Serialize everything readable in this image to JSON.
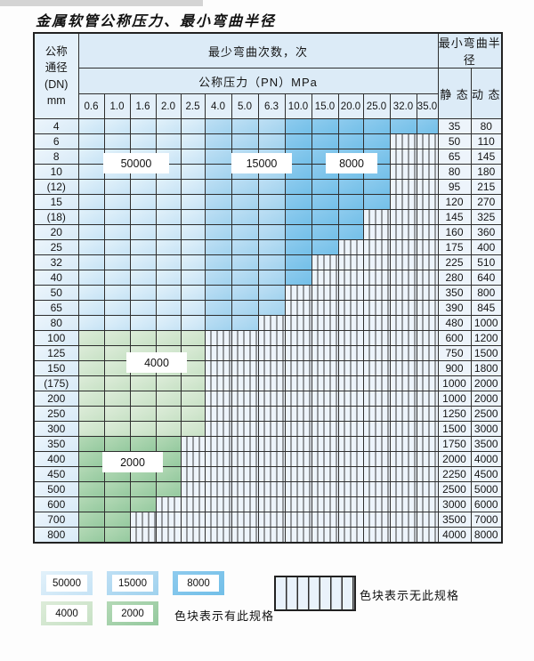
{
  "title": "金属软管公称压力、最小弯曲半径",
  "header": {
    "dn_lines": [
      "公称",
      "通径",
      "(DN)",
      "mm"
    ],
    "bend_times_label": "最少弯曲次数，次",
    "pressure_label": "公称压力（PN）MPa",
    "min_radius_label": "最小弯曲半径",
    "static_label": "静 态",
    "dynamic_label": "动 态",
    "pressure_columns": [
      "0.6",
      "1.0",
      "1.6",
      "2.0",
      "2.5",
      "4.0",
      "5.0",
      "6.3",
      "10.0",
      "15.0",
      "20.0",
      "25.0",
      "32.0",
      "35.0"
    ]
  },
  "colors": {
    "cycles_50000": "#d3e9f7",
    "cycles_15000": "#a5d4ef",
    "cycles_8000": "#7cc4ea",
    "cycles_4000": "#d2e7d0",
    "cycles_2000": "#9ecfa6",
    "no_spec_bg": "#edf4fb",
    "grid_line": "#2e2e2e"
  },
  "rows": [
    {
      "dn": "4",
      "static": "35",
      "dynamic": "80",
      "last": 13,
      "scheme": "blue"
    },
    {
      "dn": "6",
      "static": "50",
      "dynamic": "110",
      "last": 11,
      "scheme": "blue"
    },
    {
      "dn": "8",
      "static": "65",
      "dynamic": "145",
      "last": 11,
      "scheme": "blue"
    },
    {
      "dn": "10",
      "static": "80",
      "dynamic": "180",
      "last": 11,
      "scheme": "blue"
    },
    {
      "dn": "(12)",
      "static": "95",
      "dynamic": "215",
      "last": 11,
      "scheme": "blue"
    },
    {
      "dn": "15",
      "static": "120",
      "dynamic": "270",
      "last": 11,
      "scheme": "blue"
    },
    {
      "dn": "(18)",
      "static": "145",
      "dynamic": "325",
      "last": 10,
      "scheme": "blue"
    },
    {
      "dn": "20",
      "static": "160",
      "dynamic": "360",
      "last": 10,
      "scheme": "blue"
    },
    {
      "dn": "25",
      "static": "175",
      "dynamic": "400",
      "last": 9,
      "scheme": "blue"
    },
    {
      "dn": "32",
      "static": "225",
      "dynamic": "510",
      "last": 8,
      "scheme": "blue"
    },
    {
      "dn": "40",
      "static": "280",
      "dynamic": "640",
      "last": 8,
      "scheme": "blue"
    },
    {
      "dn": "50",
      "static": "350",
      "dynamic": "800",
      "last": 7,
      "scheme": "blue"
    },
    {
      "dn": "65",
      "static": "390",
      "dynamic": "845",
      "last": 7,
      "scheme": "blue"
    },
    {
      "dn": "80",
      "static": "480",
      "dynamic": "1000",
      "last": 6,
      "scheme": "blue"
    },
    {
      "dn": "100",
      "static": "600",
      "dynamic": "1200",
      "last": 4,
      "scheme": "green_light"
    },
    {
      "dn": "125",
      "static": "750",
      "dynamic": "1500",
      "last": 4,
      "scheme": "green_light"
    },
    {
      "dn": "150",
      "static": "900",
      "dynamic": "1800",
      "last": 4,
      "scheme": "green_light"
    },
    {
      "dn": "(175)",
      "static": "1000",
      "dynamic": "2000",
      "last": 4,
      "scheme": "green_light"
    },
    {
      "dn": "200",
      "static": "1000",
      "dynamic": "2000",
      "last": 4,
      "scheme": "green_light"
    },
    {
      "dn": "250",
      "static": "1250",
      "dynamic": "2500",
      "last": 4,
      "scheme": "green_light"
    },
    {
      "dn": "300",
      "static": "1500",
      "dynamic": "3000",
      "last": 4,
      "scheme": "green_light"
    },
    {
      "dn": "350",
      "static": "1750",
      "dynamic": "3500",
      "last": 3,
      "scheme": "green_dark"
    },
    {
      "dn": "400",
      "static": "2000",
      "dynamic": "4000",
      "last": 3,
      "scheme": "green_dark"
    },
    {
      "dn": "450",
      "static": "2250",
      "dynamic": "4500",
      "last": 3,
      "scheme": "green_dark"
    },
    {
      "dn": "500",
      "static": "2500",
      "dynamic": "5000",
      "last": 3,
      "scheme": "green_dark"
    },
    {
      "dn": "600",
      "static": "3000",
      "dynamic": "6000",
      "last": 2,
      "scheme": "green_dark"
    },
    {
      "dn": "700",
      "static": "3500",
      "dynamic": "7000",
      "last": 1,
      "scheme": "green_dark"
    },
    {
      "dn": "800",
      "static": "4000",
      "dynamic": "8000",
      "last": 1,
      "scheme": "green_dark"
    }
  ],
  "overlay_labels": {
    "l50000": "50000",
    "l15000": "15000",
    "l8000": "8000",
    "l4000": "4000",
    "l2000": "2000"
  },
  "legend": {
    "items": [
      {
        "label": "50000",
        "color_key": "b1"
      },
      {
        "label": "15000",
        "color_key": "b2"
      },
      {
        "label": "8000",
        "color_key": "b3"
      },
      {
        "label": "4000",
        "color_key": "g1"
      },
      {
        "label": "2000",
        "color_key": "g2"
      }
    ],
    "has_spec_text": "色块表示有此规格",
    "no_spec_text": "色块表示无此规格"
  }
}
